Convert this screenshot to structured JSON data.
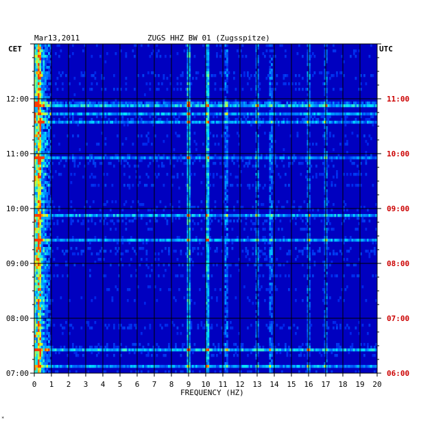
{
  "chart_data": {
    "type": "heatmap",
    "title_left": "Mar13,2011",
    "title_center": "ZUGS HHZ BW 01 (Zugsspitze)",
    "xlabel": "FREQUENCY (HZ)",
    "left_axis_label": "CET",
    "right_axis_label": "UTC",
    "xlim": [
      0,
      20
    ],
    "x_ticks": [
      "0",
      "1",
      "2",
      "3",
      "4",
      "5",
      "6",
      "7",
      "8",
      "9",
      "10",
      "11",
      "12",
      "13",
      "14",
      "15",
      "16",
      "17",
      "18",
      "19",
      "20"
    ],
    "cet_ticks": [
      "12:00",
      "11:00",
      "10:00",
      "09:00",
      "08:00",
      "07:00"
    ],
    "utc_ticks": [
      "11:00",
      "10:00",
      "09:00",
      "08:00",
      "07:00",
      "06:00"
    ],
    "time_range_cet": [
      "07:00",
      "13:00"
    ],
    "dominant_bands_hz": [
      0.3,
      9.0,
      10.1,
      11.2,
      13.0,
      13.8,
      16.0,
      17.0
    ],
    "colors": {
      "background": "#0000c0",
      "grid": "#000000",
      "cet_label": "#000000",
      "utc_label": "#cc0000"
    },
    "bottom_mark": "*"
  }
}
